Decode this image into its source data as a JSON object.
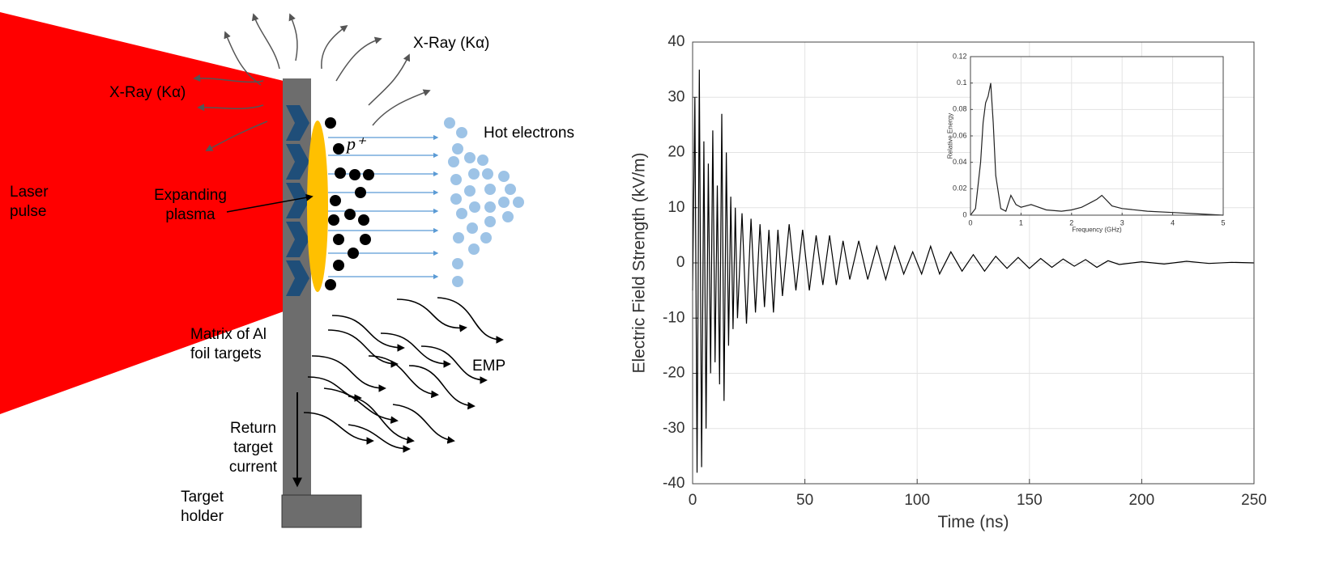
{
  "diagram": {
    "labels": {
      "xray_top": "X-Ray (Kα)",
      "xray_left": "X-Ray (Kα)",
      "laser": "Laser pulse",
      "plasma": "Expanding plasma",
      "proton": "p⁺",
      "hot_electrons": "Hot electrons",
      "matrix": "Matrix of Al foil targets",
      "emp": "EMP",
      "current": "Return target current",
      "holder": "Target holder"
    }
  },
  "chart_data": [
    {
      "type": "line",
      "xlabel": "Time (ns)",
      "ylabel": "Electric Field Strength (kV/m)",
      "grid": true,
      "color": "#000000",
      "xlim": [
        0,
        250
      ],
      "xticks": [
        0,
        50,
        100,
        150,
        200,
        250
      ],
      "ylim": [
        -40,
        40
      ],
      "yticks": [
        -40,
        -30,
        -20,
        -10,
        0,
        10,
        20,
        30,
        40
      ],
      "x": [
        0,
        1,
        2,
        3,
        4,
        5,
        6,
        7,
        8,
        9,
        10,
        11,
        12,
        13,
        14,
        15,
        16,
        17,
        18,
        19,
        20,
        22,
        24,
        26,
        28,
        30,
        32,
        34,
        36,
        38,
        40,
        43,
        46,
        49,
        52,
        55,
        58,
        61,
        64,
        67,
        70,
        74,
        78,
        82,
        86,
        90,
        94,
        98,
        102,
        106,
        110,
        115,
        120,
        125,
        130,
        135,
        140,
        145,
        150,
        155,
        160,
        165,
        170,
        175,
        180,
        185,
        190,
        200,
        210,
        220,
        230,
        240,
        250
      ],
      "values": [
        -5,
        30,
        -38,
        35,
        -37,
        22,
        -30,
        18,
        -20,
        24,
        -18,
        14,
        -22,
        27,
        -25,
        20,
        -15,
        12,
        -12,
        10,
        -10,
        9,
        -11,
        8,
        -9,
        7,
        -8,
        6,
        -9,
        6,
        -6,
        7,
        -5,
        6,
        -5,
        5,
        -4,
        5,
        -4,
        4,
        -3,
        4,
        -3,
        3,
        -3,
        3,
        -2,
        2,
        -2,
        3,
        -2,
        2,
        -1.5,
        1.5,
        -1.5,
        1.2,
        -1,
        1,
        -1,
        0.8,
        -0.8,
        0.7,
        -0.6,
        0.6,
        -0.8,
        0.4,
        -0.3,
        0.2,
        -0.2,
        0.3,
        -0.1,
        0.1,
        0
      ]
    },
    {
      "type": "line",
      "xlabel": "Frequency (GHz)",
      "ylabel": "Relative Energy",
      "grid": true,
      "color": "#222222",
      "xlim": [
        0,
        5
      ],
      "xticks": [
        0,
        1,
        2,
        3,
        4,
        5
      ],
      "ylim": [
        0,
        0.12
      ],
      "yticks": [
        0,
        0.02,
        0.04,
        0.06,
        0.08,
        0.1,
        0.12
      ],
      "x": [
        0,
        0.1,
        0.2,
        0.25,
        0.3,
        0.35,
        0.4,
        0.45,
        0.5,
        0.6,
        0.7,
        0.8,
        0.9,
        1,
        1.2,
        1.5,
        1.8,
        2,
        2.2,
        2.4,
        2.5,
        2.6,
        2.8,
        3,
        3.5,
        4,
        4.5,
        5
      ],
      "values": [
        0,
        0.005,
        0.04,
        0.07,
        0.085,
        0.09,
        0.1,
        0.07,
        0.03,
        0.005,
        0.003,
        0.015,
        0.008,
        0.006,
        0.008,
        0.004,
        0.003,
        0.004,
        0.006,
        0.01,
        0.012,
        0.015,
        0.007,
        0.005,
        0.003,
        0.002,
        0.001,
        0
      ]
    }
  ]
}
